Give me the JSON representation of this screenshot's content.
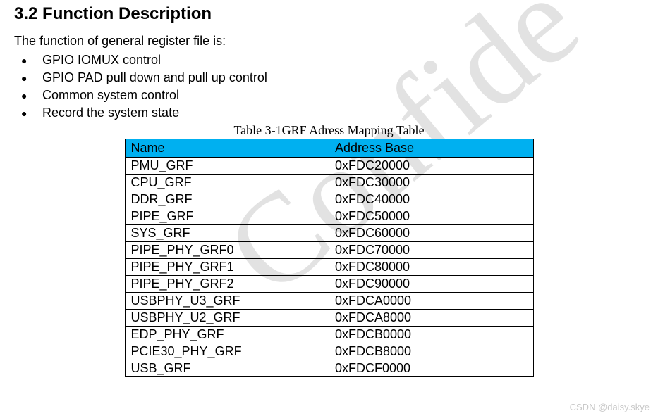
{
  "watermark_text": "Confide",
  "heading": "3.2 Function Description",
  "intro": "The function of general register file is:",
  "bullets": [
    "GPIO IOMUX control",
    "GPIO PAD pull down and pull up control",
    "Common system control",
    "Record the system state"
  ],
  "table": {
    "caption": "Table 3-1GRF Adress Mapping Table",
    "columns": [
      "Name",
      "Address Base"
    ],
    "rows": [
      [
        "PMU_GRF",
        "0xFDC20000"
      ],
      [
        "CPU_GRF",
        "0xFDC30000"
      ],
      [
        "DDR_GRF",
        "0xFDC40000"
      ],
      [
        "PIPE_GRF",
        "0xFDC50000"
      ],
      [
        "SYS_GRF",
        "0xFDC60000"
      ],
      [
        "PIPE_PHY_GRF0",
        "0xFDC70000"
      ],
      [
        "PIPE_PHY_GRF1",
        "0xFDC80000"
      ],
      [
        "PIPE_PHY_GRF2",
        "0xFDC90000"
      ],
      [
        "USBPHY_U3_GRF",
        "0xFDCA0000"
      ],
      [
        "USBPHY_U2_GRF",
        "0xFDCA8000"
      ],
      [
        "EDP_PHY_GRF",
        "0xFDCB0000"
      ],
      [
        "PCIE30_PHY_GRF",
        "0xFDCB8000"
      ],
      [
        "USB_GRF",
        "0xFDCF0000"
      ]
    ],
    "header_bg": "#00b0f0",
    "border_color": "#000000",
    "font_size": 18
  },
  "attribution": "CSDN @daisy.skye"
}
